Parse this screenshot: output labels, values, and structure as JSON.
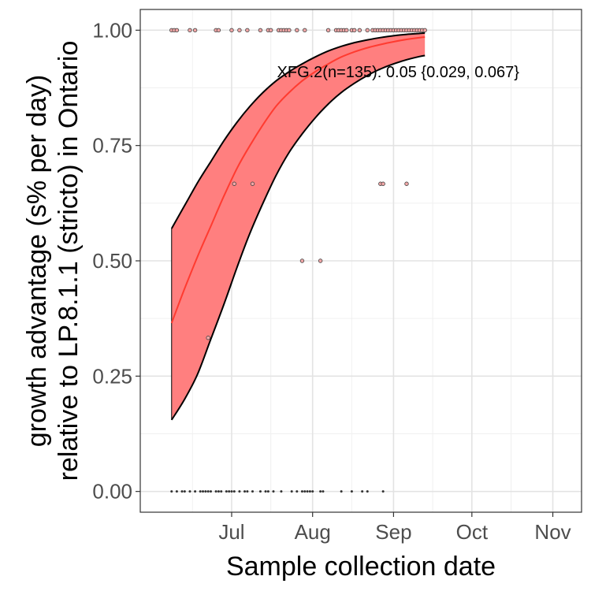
{
  "chart_data": {
    "type": "scatter",
    "title": "",
    "xlabel": "Sample collection date",
    "ylabel": "growth advantage (s% per day)\nrelative to LP.8.1.1 (stricto) in Ontario",
    "ylabel_lines": [
      "growth advantage (s% per day)",
      "relative to LP.8.1.1 (stricto) in Ontario"
    ],
    "xlim": [
      "2025-05-27",
      "2025-11-12"
    ],
    "ylim": [
      -0.045,
      1.045
    ],
    "x_ticks": [
      {
        "date": "2025-07-01",
        "label": "Jul"
      },
      {
        "date": "2025-08-01",
        "label": "Aug"
      },
      {
        "date": "2025-09-01",
        "label": "Sep"
      },
      {
        "date": "2025-10-01",
        "label": "Oct"
      },
      {
        "date": "2025-11-01",
        "label": "Nov"
      }
    ],
    "x_minor_ticks": [
      "2025-06-16",
      "2025-07-16",
      "2025-08-16",
      "2025-09-16",
      "2025-10-16"
    ],
    "y_ticks": [
      {
        "value": 0.0,
        "label": "0.00"
      },
      {
        "value": 0.25,
        "label": "0.25"
      },
      {
        "value": 0.5,
        "label": "0.50"
      },
      {
        "value": 0.75,
        "label": "0.75"
      },
      {
        "value": 1.0,
        "label": "1.00"
      }
    ],
    "grid": true,
    "legend": "none",
    "annotation": "XFG.2(n=135): 0.05 {0.029, 0.067}",
    "annotation_anchor": {
      "date": "2025-08-10",
      "value": 0.91
    },
    "fit": {
      "color": "#ff3b30",
      "ribbon_color": "#ff7f7f",
      "ribbon_outline": "#000000",
      "series": [
        {
          "date": "2025-06-08",
          "mid": 0.365,
          "lo": 0.155,
          "hi": 0.57
        },
        {
          "date": "2025-06-13",
          "mid": 0.44,
          "lo": 0.2,
          "hi": 0.62
        },
        {
          "date": "2025-06-18",
          "mid": 0.51,
          "lo": 0.255,
          "hi": 0.67
        },
        {
          "date": "2025-06-23",
          "mid": 0.575,
          "lo": 0.33,
          "hi": 0.715
        },
        {
          "date": "2025-06-28",
          "mid": 0.64,
          "lo": 0.405,
          "hi": 0.76
        },
        {
          "date": "2025-07-03",
          "mid": 0.7,
          "lo": 0.485,
          "hi": 0.8
        },
        {
          "date": "2025-07-08",
          "mid": 0.75,
          "lo": 0.56,
          "hi": 0.835
        },
        {
          "date": "2025-07-13",
          "mid": 0.795,
          "lo": 0.625,
          "hi": 0.865
        },
        {
          "date": "2025-07-18",
          "mid": 0.835,
          "lo": 0.685,
          "hi": 0.89
        },
        {
          "date": "2025-07-23",
          "mid": 0.865,
          "lo": 0.735,
          "hi": 0.91
        },
        {
          "date": "2025-07-28",
          "mid": 0.89,
          "lo": 0.775,
          "hi": 0.927
        },
        {
          "date": "2025-08-02",
          "mid": 0.91,
          "lo": 0.81,
          "hi": 0.942
        },
        {
          "date": "2025-08-07",
          "mid": 0.927,
          "lo": 0.84,
          "hi": 0.955
        },
        {
          "date": "2025-08-12",
          "mid": 0.942,
          "lo": 0.865,
          "hi": 0.965
        },
        {
          "date": "2025-08-17",
          "mid": 0.953,
          "lo": 0.885,
          "hi": 0.973
        },
        {
          "date": "2025-08-22",
          "mid": 0.962,
          "lo": 0.902,
          "hi": 0.979
        },
        {
          "date": "2025-08-27",
          "mid": 0.969,
          "lo": 0.916,
          "hi": 0.984
        },
        {
          "date": "2025-09-01",
          "mid": 0.975,
          "lo": 0.927,
          "hi": 0.988
        },
        {
          "date": "2025-09-06",
          "mid": 0.98,
          "lo": 0.936,
          "hi": 0.991
        },
        {
          "date": "2025-09-11",
          "mid": 0.984,
          "lo": 0.943,
          "hi": 0.993
        },
        {
          "date": "2025-09-13",
          "mid": 0.985,
          "lo": 0.945,
          "hi": 0.994
        }
      ]
    },
    "points": [
      {
        "date": "2025-06-08",
        "value": 0.0
      },
      {
        "date": "2025-06-10",
        "value": 0.0
      },
      {
        "date": "2025-06-12",
        "value": 0.0
      },
      {
        "date": "2025-06-13",
        "value": 0.0
      },
      {
        "date": "2025-06-15",
        "value": 0.0
      },
      {
        "date": "2025-06-17",
        "value": 0.0
      },
      {
        "date": "2025-06-19",
        "value": 0.0
      },
      {
        "date": "2025-06-20",
        "value": 0.0
      },
      {
        "date": "2025-06-21",
        "value": 0.0
      },
      {
        "date": "2025-06-22",
        "value": 0.0
      },
      {
        "date": "2025-06-23",
        "value": 0.0
      },
      {
        "date": "2025-06-25",
        "value": 0.0
      },
      {
        "date": "2025-06-26",
        "value": 0.0
      },
      {
        "date": "2025-06-27",
        "value": 0.0
      },
      {
        "date": "2025-06-29",
        "value": 0.0
      },
      {
        "date": "2025-06-30",
        "value": 0.0
      },
      {
        "date": "2025-07-01",
        "value": 0.0
      },
      {
        "date": "2025-07-02",
        "value": 0.0
      },
      {
        "date": "2025-07-04",
        "value": 0.0
      },
      {
        "date": "2025-07-06",
        "value": 0.0
      },
      {
        "date": "2025-07-07",
        "value": 0.0
      },
      {
        "date": "2025-07-09",
        "value": 0.0
      },
      {
        "date": "2025-07-12",
        "value": 0.0
      },
      {
        "date": "2025-07-14",
        "value": 0.0
      },
      {
        "date": "2025-07-15",
        "value": 0.0
      },
      {
        "date": "2025-07-17",
        "value": 0.0
      },
      {
        "date": "2025-07-20",
        "value": 0.0
      },
      {
        "date": "2025-07-24",
        "value": 0.0
      },
      {
        "date": "2025-07-26",
        "value": 0.0
      },
      {
        "date": "2025-07-28",
        "value": 0.0
      },
      {
        "date": "2025-07-29",
        "value": 0.0
      },
      {
        "date": "2025-07-30",
        "value": 0.0
      },
      {
        "date": "2025-07-31",
        "value": 0.0
      },
      {
        "date": "2025-08-01",
        "value": 0.0
      },
      {
        "date": "2025-08-04",
        "value": 0.0
      },
      {
        "date": "2025-08-05",
        "value": 0.0
      },
      {
        "date": "2025-08-12",
        "value": 0.0
      },
      {
        "date": "2025-08-16",
        "value": 0.0
      },
      {
        "date": "2025-08-20",
        "value": 0.0
      },
      {
        "date": "2025-08-22",
        "value": 0.0
      },
      {
        "date": "2025-08-28",
        "value": 0.0
      },
      {
        "date": "2025-06-22",
        "value": 0.333
      },
      {
        "date": "2025-07-28",
        "value": 0.5
      },
      {
        "date": "2025-08-04",
        "value": 0.5
      },
      {
        "date": "2025-07-02",
        "value": 0.667
      },
      {
        "date": "2025-07-09",
        "value": 0.667
      },
      {
        "date": "2025-08-27",
        "value": 0.667
      },
      {
        "date": "2025-08-28",
        "value": 0.667
      },
      {
        "date": "2025-09-06",
        "value": 0.667
      },
      {
        "date": "2025-06-08",
        "value": 1.0
      },
      {
        "date": "2025-06-09",
        "value": 1.0
      },
      {
        "date": "2025-06-10",
        "value": 1.0
      },
      {
        "date": "2025-06-15",
        "value": 1.0
      },
      {
        "date": "2025-06-17",
        "value": 1.0
      },
      {
        "date": "2025-06-25",
        "value": 1.0
      },
      {
        "date": "2025-06-26",
        "value": 1.0
      },
      {
        "date": "2025-07-01",
        "value": 1.0
      },
      {
        "date": "2025-07-04",
        "value": 1.0
      },
      {
        "date": "2025-07-07",
        "value": 1.0
      },
      {
        "date": "2025-07-12",
        "value": 1.0
      },
      {
        "date": "2025-07-15",
        "value": 1.0
      },
      {
        "date": "2025-07-16",
        "value": 1.0
      },
      {
        "date": "2025-07-19",
        "value": 1.0
      },
      {
        "date": "2025-07-20",
        "value": 1.0
      },
      {
        "date": "2025-07-21",
        "value": 1.0
      },
      {
        "date": "2025-07-22",
        "value": 1.0
      },
      {
        "date": "2025-07-23",
        "value": 1.0
      },
      {
        "date": "2025-07-26",
        "value": 1.0
      },
      {
        "date": "2025-07-29",
        "value": 1.0
      },
      {
        "date": "2025-08-07",
        "value": 1.0
      },
      {
        "date": "2025-08-10",
        "value": 1.0
      },
      {
        "date": "2025-08-11",
        "value": 1.0
      },
      {
        "date": "2025-08-12",
        "value": 1.0
      },
      {
        "date": "2025-08-13",
        "value": 1.0
      },
      {
        "date": "2025-08-14",
        "value": 1.0
      },
      {
        "date": "2025-08-16",
        "value": 1.0
      },
      {
        "date": "2025-08-17",
        "value": 1.0
      },
      {
        "date": "2025-08-19",
        "value": 1.0
      },
      {
        "date": "2025-08-22",
        "value": 1.0
      },
      {
        "date": "2025-08-24",
        "value": 1.0
      },
      {
        "date": "2025-08-25",
        "value": 1.0
      },
      {
        "date": "2025-08-26",
        "value": 1.0
      },
      {
        "date": "2025-08-27",
        "value": 1.0
      },
      {
        "date": "2025-08-28",
        "value": 1.0
      },
      {
        "date": "2025-08-29",
        "value": 1.0
      },
      {
        "date": "2025-08-30",
        "value": 1.0
      },
      {
        "date": "2025-08-31",
        "value": 1.0
      },
      {
        "date": "2025-09-01",
        "value": 1.0
      },
      {
        "date": "2025-09-02",
        "value": 1.0
      },
      {
        "date": "2025-09-03",
        "value": 1.0
      },
      {
        "date": "2025-09-04",
        "value": 1.0
      },
      {
        "date": "2025-09-05",
        "value": 1.0
      },
      {
        "date": "2025-09-06",
        "value": 1.0
      },
      {
        "date": "2025-09-07",
        "value": 1.0
      },
      {
        "date": "2025-09-08",
        "value": 1.0
      },
      {
        "date": "2025-09-09",
        "value": 1.0
      },
      {
        "date": "2025-09-10",
        "value": 1.0
      },
      {
        "date": "2025-09-11",
        "value": 1.0
      },
      {
        "date": "2025-09-12",
        "value": 1.0
      },
      {
        "date": "2025-09-13",
        "value": 1.0
      }
    ]
  }
}
